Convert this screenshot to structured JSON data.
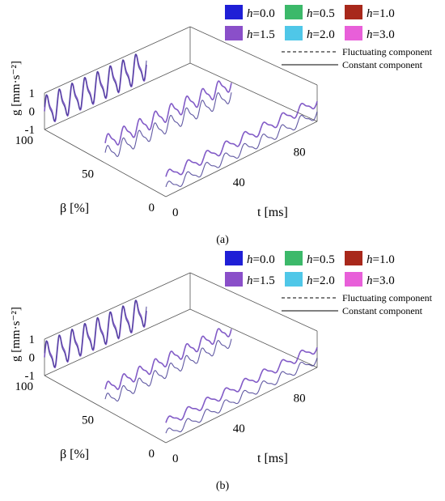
{
  "chart_data": [
    {
      "panel_label": "(a)",
      "type": "line",
      "subtype": "3d-waterfall",
      "xlabel": "t [ms]",
      "ylabel": "β [%]",
      "zlabel": "g [mm·s⁻²]",
      "x_ticks": [
        "0",
        "40",
        "80"
      ],
      "y_ticks": [
        "0",
        "50",
        "100"
      ],
      "z_ticks": [
        "-1",
        "0",
        "1"
      ],
      "xlim": [
        0,
        100
      ],
      "ylim": [
        0,
        100
      ],
      "zlim": [
        -1,
        1
      ],
      "beta_slices": [
        0,
        50,
        100
      ],
      "series_h": [
        "0.0",
        "0.5",
        "1.0",
        "1.5",
        "2.0",
        "3.0"
      ],
      "series": [
        {
          "beta": 100,
          "component": "constant",
          "amplitude": 0.95,
          "cycles": 8
        },
        {
          "beta": 100,
          "component": "fluctuating",
          "amplitude": 0.95,
          "cycles": 8
        },
        {
          "beta": 50,
          "component": "constant",
          "amplitude": 0.5,
          "cycles": 8
        },
        {
          "beta": 50,
          "component": "fluctuating",
          "amplitude": 0.5,
          "cycles": 8
        },
        {
          "beta": 0,
          "component": "constant",
          "amplitude": 0.35,
          "cycles": 8
        },
        {
          "beta": 0,
          "component": "fluctuating",
          "amplitude": 0.35,
          "cycles": 8
        }
      ]
    },
    {
      "panel_label": "(b)",
      "type": "line",
      "subtype": "3d-waterfall",
      "xlabel": "t [ms]",
      "ylabel": "β [%]",
      "zlabel": "g [mm·s⁻²]",
      "x_ticks": [
        "0",
        "40",
        "80"
      ],
      "y_ticks": [
        "0",
        "50",
        "100"
      ],
      "z_ticks": [
        "-1",
        "0",
        "1"
      ],
      "xlim": [
        0,
        100
      ],
      "ylim": [
        0,
        100
      ],
      "zlim": [
        -1,
        1
      ],
      "beta_slices": [
        0,
        50,
        100
      ],
      "series_h": [
        "0.0",
        "0.5",
        "1.0",
        "1.5",
        "2.0",
        "3.0"
      ],
      "series": [
        {
          "beta": 100,
          "component": "constant",
          "amplitude": 0.95,
          "cycles": 8
        },
        {
          "beta": 100,
          "component": "fluctuating",
          "amplitude": 0.95,
          "cycles": 8
        },
        {
          "beta": 50,
          "component": "constant",
          "amplitude": 0.4,
          "cycles": 8
        },
        {
          "beta": 50,
          "component": "fluctuating",
          "amplitude": 0.4,
          "cycles": 8
        },
        {
          "beta": 0,
          "component": "constant",
          "amplitude": 0.3,
          "cycles": 8
        },
        {
          "beta": 0,
          "component": "fluctuating",
          "amplitude": 0.3,
          "cycles": 8
        }
      ]
    }
  ],
  "legend": {
    "h_entries": [
      {
        "label": "h=0.0",
        "color": "#1f1fd6"
      },
      {
        "label": "h=0.5",
        "color": "#3cb96a"
      },
      {
        "label": "h=1.0",
        "color": "#a8281b"
      },
      {
        "label": "h=1.5",
        "color": "#8a4fc9"
      },
      {
        "label": "h=2.0",
        "color": "#4fc7e8"
      },
      {
        "label": "h=3.0",
        "color": "#e85fd9"
      }
    ],
    "fluctuating_label": "Fluctuating component",
    "constant_label": "Constant component"
  },
  "colors": {
    "curve": "#7b52c4",
    "curve_dark": "#3a2f8c",
    "axis": "#555555"
  }
}
